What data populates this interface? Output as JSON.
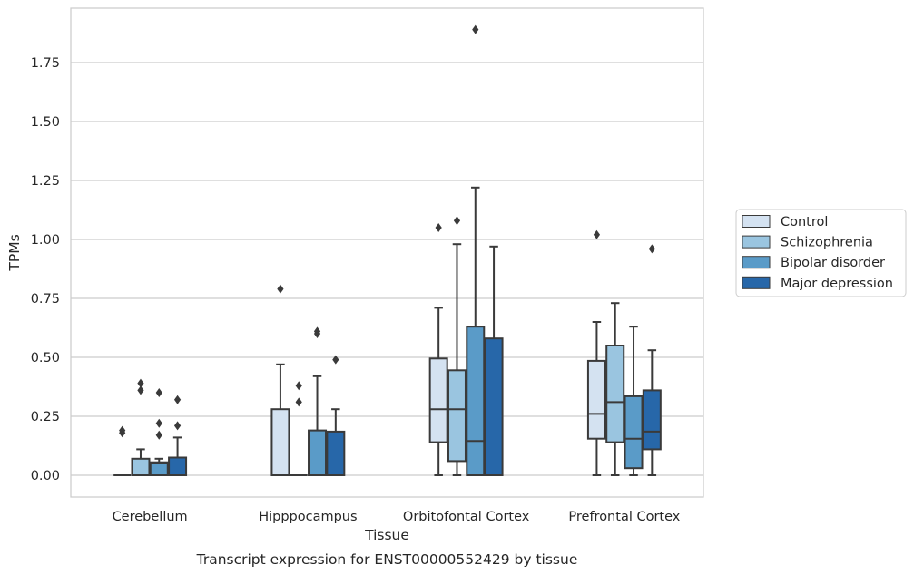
{
  "chart_data": {
    "type": "box",
    "caption": "Transcript expression for ENST00000552429 by tissue",
    "xlabel": "Tissue",
    "ylabel": "TPMs",
    "ylim": [
      -0.09,
      1.98
    ],
    "yticks": [
      "0.00",
      "0.25",
      "0.50",
      "0.75",
      "1.00",
      "1.25",
      "1.50",
      "1.75"
    ],
    "grid": "horizontal",
    "legend_position": "right",
    "categories": [
      "Cerebellum",
      "Hipppocampus",
      "Orbitofontal Cortex",
      "Prefrontal Cortex"
    ],
    "series": [
      {
        "name": "Control",
        "color": "#d4e2f1",
        "boxes": [
          {
            "q1": 0,
            "median": 0,
            "q3": 0,
            "whislo": 0,
            "whishi": 0,
            "fliers": [
              0.18,
              0.19
            ]
          },
          {
            "q1": 0,
            "median": 0,
            "q3": 0.28,
            "whislo": 0,
            "whishi": 0.47,
            "fliers": [
              0.79
            ]
          },
          {
            "q1": 0.14,
            "median": 0.28,
            "q3": 0.495,
            "whislo": 0,
            "whishi": 0.71,
            "fliers": [
              1.05
            ]
          },
          {
            "q1": 0.155,
            "median": 0.26,
            "q3": 0.485,
            "whislo": 0,
            "whishi": 0.65,
            "fliers": [
              1.02
            ]
          }
        ]
      },
      {
        "name": "Schizophrenia",
        "color": "#9ac5e0",
        "boxes": [
          {
            "q1": 0,
            "median": 0,
            "q3": 0.07,
            "whislo": 0,
            "whishi": 0.11,
            "fliers": [
              0.36,
              0.39
            ]
          },
          {
            "q1": 0,
            "median": 0,
            "q3": 0,
            "whislo": 0,
            "whishi": 0,
            "fliers": [
              0.31,
              0.38
            ]
          },
          {
            "q1": 0.06,
            "median": 0.28,
            "q3": 0.445,
            "whislo": 0,
            "whishi": 0.98,
            "fliers": [
              1.08
            ]
          },
          {
            "q1": 0.14,
            "median": 0.31,
            "q3": 0.55,
            "whislo": 0,
            "whishi": 0.73,
            "fliers": []
          }
        ]
      },
      {
        "name": "Bipolar disorder",
        "color": "#5a9bc8",
        "boxes": [
          {
            "q1": 0,
            "median": 0.05,
            "q3": 0.055,
            "whislo": 0,
            "whishi": 0.07,
            "fliers": [
              0.17,
              0.22,
              0.35
            ]
          },
          {
            "q1": 0,
            "median": 0,
            "q3": 0.19,
            "whislo": 0,
            "whishi": 0.42,
            "fliers": [
              0.6,
              0.61
            ]
          },
          {
            "q1": 0,
            "median": 0.145,
            "q3": 0.63,
            "whislo": 0,
            "whishi": 1.22,
            "fliers": [
              1.89
            ]
          },
          {
            "q1": 0.03,
            "median": 0.155,
            "q3": 0.335,
            "whislo": 0,
            "whishi": 0.63,
            "fliers": []
          }
        ]
      },
      {
        "name": "Major depression",
        "color": "#2767a9",
        "boxes": [
          {
            "q1": 0,
            "median": 0,
            "q3": 0.075,
            "whislo": 0,
            "whishi": 0.16,
            "fliers": [
              0.21,
              0.32
            ]
          },
          {
            "q1": 0,
            "median": 0,
            "q3": 0.185,
            "whislo": 0,
            "whishi": 0.28,
            "fliers": [
              0.49
            ]
          },
          {
            "q1": 0,
            "median": 0,
            "q3": 0.58,
            "whislo": 0,
            "whishi": 0.97,
            "fliers": []
          },
          {
            "q1": 0.11,
            "median": 0.185,
            "q3": 0.36,
            "whislo": 0,
            "whishi": 0.53,
            "fliers": [
              0.96
            ]
          }
        ]
      }
    ]
  }
}
